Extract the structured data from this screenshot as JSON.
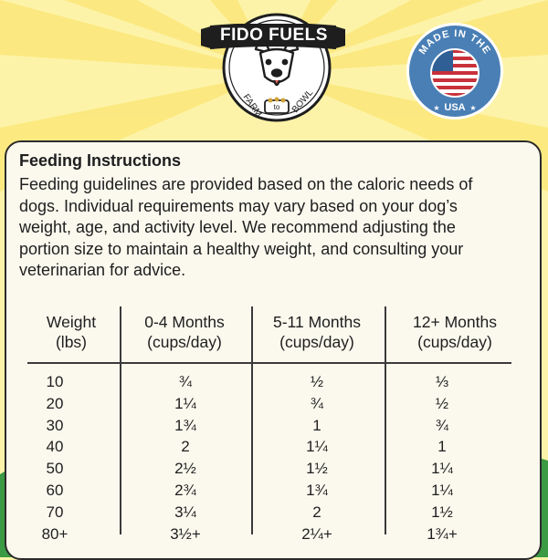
{
  "brand": {
    "name": "FIDO FUELS",
    "tag_left": "FARM",
    "tag_mid": "to",
    "tag_right": "BOWL"
  },
  "seal": {
    "top_text": "MADE IN THE",
    "bottom_text": "USA"
  },
  "colors": {
    "background": "#fdf3a8",
    "ray": "#fbe77a",
    "grass": "#2f8f3c",
    "card": "#fbf9ee",
    "text": "#1e1e1e",
    "seal_blue": "#4a7fb5",
    "flag_red": "#c8313a"
  },
  "feeding": {
    "title": "Feeding Instructions",
    "lines": [
      "Feeding guidelines are provided based on the caloric needs of",
      "dogs. Individual requirements may vary based on your dog’s",
      "weight, age, and activity level. We recommend adjusting the",
      "portion size to maintain a healthy weight, and consulting your",
      "veterinarian for advice."
    ]
  },
  "table": {
    "headers": [
      {
        "line1": "Weight",
        "line2": "(lbs)"
      },
      {
        "line1": "0-4 Months",
        "line2": "(cups/day)"
      },
      {
        "line1": "5-11 Months",
        "line2": "(cups/day)"
      },
      {
        "line1": "12+ Months",
        "line2": "(cups/day)"
      }
    ],
    "rows": [
      [
        "10",
        "¾",
        "½",
        "⅓"
      ],
      [
        "20",
        "1¼",
        "¾",
        "½"
      ],
      [
        "30",
        "1¾",
        "1",
        "¾"
      ],
      [
        "40",
        "2",
        "1¼",
        "1"
      ],
      [
        "50",
        "2½",
        "1½",
        "1¼"
      ],
      [
        "60",
        "2¾",
        "1¾",
        "1¼"
      ],
      [
        "70",
        "3¼",
        "2",
        "1½"
      ],
      [
        "80+",
        "3½+",
        "2¼+",
        "1¾+"
      ]
    ]
  }
}
